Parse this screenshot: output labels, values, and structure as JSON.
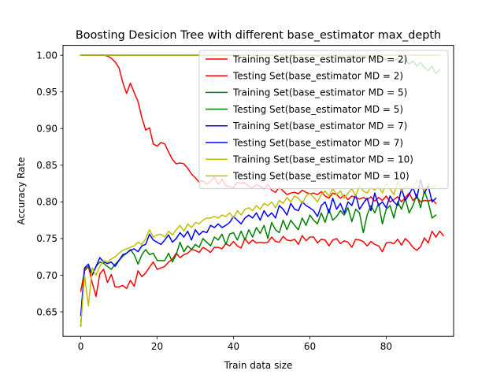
{
  "chart_data": {
    "type": "line",
    "title": "Boosting Desicion Tree with different base_estimator max_depth",
    "xlabel": "Train data size",
    "ylabel": "Accuracy Rate",
    "xlim": [
      -4.65,
      97.65
    ],
    "ylim": [
      0.6165,
      1.0135
    ],
    "xticks": [
      0,
      20,
      40,
      60,
      80
    ],
    "yticks": [
      0.65,
      0.7,
      0.75,
      0.8,
      0.85,
      0.9,
      0.95,
      1.0
    ],
    "ytick_labels": [
      "0.65",
      "0.70",
      "0.75",
      "0.80",
      "0.85",
      "0.90",
      "0.95",
      "1.00"
    ],
    "grid": false,
    "legend_position": "upper right",
    "series": [
      {
        "name": "Training Set(base_estimator MD = 2)",
        "color": "#ff0000",
        "values": [
          1.0,
          1.0,
          1.0,
          1.0,
          1.0,
          1.0,
          1.0,
          0.999,
          0.996,
          0.991,
          0.983,
          0.963,
          0.948,
          0.962,
          0.949,
          0.937,
          0.915,
          0.898,
          0.901,
          0.879,
          0.876,
          0.881,
          0.879,
          0.868,
          0.858,
          0.852,
          0.853,
          0.852,
          0.846,
          0.838,
          0.833,
          0.827,
          0.829,
          0.824,
          0.828,
          0.834,
          0.824,
          0.831,
          0.822,
          0.821,
          0.819,
          0.827,
          0.825,
          0.826,
          0.821,
          0.819,
          0.824,
          0.821,
          0.818,
          0.824,
          0.816,
          0.813,
          0.82,
          0.815,
          0.81,
          0.812,
          0.813,
          0.811,
          0.816,
          0.813,
          0.811,
          0.812,
          0.81,
          0.814,
          0.808,
          0.805,
          0.812,
          0.81,
          0.805,
          0.809,
          0.803,
          0.808,
          0.806,
          0.804,
          0.806,
          0.803,
          0.807,
          0.801,
          0.806,
          0.802,
          0.808,
          0.8,
          0.803,
          0.807,
          0.8,
          0.806,
          0.812,
          0.802,
          0.807,
          0.8,
          0.802,
          0.801,
          0.803,
          0.798
        ]
      },
      {
        "name": "Testing Set(base_estimator MD = 2)",
        "color": "#ff0000",
        "values": [
          0.678,
          0.706,
          0.712,
          0.69,
          0.671,
          0.702,
          0.708,
          0.69,
          0.701,
          0.684,
          0.684,
          0.686,
          0.682,
          0.693,
          0.685,
          0.706,
          0.698,
          0.703,
          0.711,
          0.718,
          0.708,
          0.71,
          0.712,
          0.718,
          0.722,
          0.73,
          0.724,
          0.728,
          0.73,
          0.735,
          0.734,
          0.731,
          0.738,
          0.735,
          0.731,
          0.738,
          0.738,
          0.736,
          0.743,
          0.74,
          0.746,
          0.74,
          0.737,
          0.75,
          0.743,
          0.748,
          0.744,
          0.745,
          0.744,
          0.745,
          0.752,
          0.746,
          0.745,
          0.753,
          0.748,
          0.747,
          0.749,
          0.742,
          0.754,
          0.747,
          0.752,
          0.752,
          0.744,
          0.749,
          0.748,
          0.74,
          0.748,
          0.75,
          0.743,
          0.747,
          0.745,
          0.738,
          0.749,
          0.748,
          0.746,
          0.74,
          0.746,
          0.742,
          0.74,
          0.732,
          0.744,
          0.745,
          0.743,
          0.749,
          0.741,
          0.75,
          0.745,
          0.738,
          0.734,
          0.739,
          0.751,
          0.744,
          0.76,
          0.752,
          0.76,
          0.754
        ]
      },
      {
        "name": "Training Set(base_estimator MD = 5)",
        "color": "#008000",
        "values": [
          1.0,
          1.0,
          1.0,
          1.0,
          1.0,
          1.0,
          1.0,
          1.0,
          1.0,
          1.0,
          1.0,
          1.0,
          1.0,
          1.0,
          1.0,
          1.0,
          1.0,
          1.0,
          1.0,
          1.0,
          1.0,
          1.0,
          1.0,
          1.0,
          1.0,
          1.0,
          1.0,
          1.0,
          1.0,
          1.0,
          1.0,
          1.0,
          1.0,
          1.0,
          1.0,
          1.0,
          1.0,
          1.0,
          1.0,
          1.0,
          1.0,
          1.0,
          1.0,
          1.0,
          1.0,
          1.0,
          1.0,
          1.0,
          1.0,
          1.0,
          1.0,
          1.0,
          1.0,
          1.0,
          1.0,
          1.0,
          1.0,
          1.0,
          1.0,
          1.0,
          1.0,
          1.0,
          0.999,
          1.0,
          1.0,
          0.999,
          1.0,
          0.999,
          0.998,
          1.0,
          0.999,
          0.998,
          0.997,
          0.998,
          0.999,
          0.997,
          0.996,
          0.998,
          0.995,
          0.997,
          0.994,
          0.996,
          0.993,
          0.995,
          0.99,
          0.994,
          0.988,
          0.992,
          0.985,
          0.99,
          0.983,
          0.979,
          0.985,
          0.975,
          0.98
        ]
      },
      {
        "name": "Testing Set(base_estimator MD = 5)",
        "color": "#008000",
        "values": [
          0.631,
          0.708,
          0.712,
          0.7,
          0.712,
          0.718,
          0.716,
          0.712,
          0.708,
          0.715,
          0.72,
          0.726,
          0.73,
          0.735,
          0.728,
          0.715,
          0.728,
          0.735,
          0.728,
          0.73,
          0.72,
          0.72,
          0.72,
          0.73,
          0.718,
          0.728,
          0.745,
          0.732,
          0.74,
          0.735,
          0.742,
          0.738,
          0.75,
          0.745,
          0.74,
          0.752,
          0.748,
          0.756,
          0.742,
          0.756,
          0.758,
          0.748,
          0.76,
          0.748,
          0.762,
          0.752,
          0.765,
          0.757,
          0.768,
          0.75,
          0.772,
          0.762,
          0.758,
          0.775,
          0.762,
          0.775,
          0.768,
          0.762,
          0.778,
          0.768,
          0.782,
          0.775,
          0.77,
          0.785,
          0.772,
          0.79,
          0.775,
          0.78,
          0.788,
          0.782,
          0.792,
          0.773,
          0.79,
          0.785,
          0.758,
          0.782,
          0.795,
          0.785,
          0.798,
          0.77,
          0.79,
          0.795,
          0.778,
          0.8,
          0.79,
          0.805,
          0.785,
          0.795,
          0.81,
          0.792,
          0.815,
          0.8,
          0.778,
          0.782
        ]
      },
      {
        "name": "Training Set(base_estimator MD = 7)",
        "color": "#0000ff",
        "values": [
          1.0,
          1.0,
          1.0,
          1.0,
          1.0,
          1.0,
          1.0,
          1.0,
          1.0,
          1.0,
          1.0,
          1.0,
          1.0,
          1.0,
          1.0,
          1.0,
          1.0,
          1.0,
          1.0,
          1.0,
          1.0,
          1.0,
          1.0,
          1.0,
          1.0,
          1.0,
          1.0,
          1.0,
          1.0,
          1.0,
          1.0,
          1.0,
          1.0,
          1.0,
          1.0,
          1.0,
          1.0,
          1.0,
          1.0,
          1.0,
          1.0,
          1.0,
          1.0,
          1.0,
          1.0,
          1.0,
          1.0,
          1.0,
          1.0,
          1.0,
          1.0,
          1.0,
          1.0,
          1.0,
          1.0,
          1.0,
          1.0,
          1.0,
          1.0,
          1.0,
          1.0,
          1.0,
          1.0,
          1.0,
          1.0,
          1.0,
          1.0,
          1.0,
          1.0,
          1.0,
          1.0,
          1.0,
          1.0,
          1.0,
          1.0,
          1.0,
          1.0,
          1.0,
          1.0,
          1.0,
          1.0,
          1.0,
          1.0,
          1.0,
          1.0,
          1.0,
          1.0,
          1.0,
          1.0,
          1.0,
          1.0,
          1.0,
          1.0,
          1.0,
          1.0
        ]
      },
      {
        "name": "Testing Set(base_estimator MD = 7)",
        "color": "#0000ff",
        "values": [
          0.645,
          0.71,
          0.715,
          0.7,
          0.712,
          0.724,
          0.718,
          0.716,
          0.718,
          0.712,
          0.72,
          0.728,
          0.73,
          0.734,
          0.736,
          0.732,
          0.74,
          0.742,
          0.756,
          0.748,
          0.745,
          0.742,
          0.748,
          0.755,
          0.745,
          0.75,
          0.758,
          0.752,
          0.76,
          0.748,
          0.762,
          0.755,
          0.76,
          0.758,
          0.768,
          0.765,
          0.77,
          0.765,
          0.768,
          0.772,
          0.78,
          0.775,
          0.77,
          0.778,
          0.782,
          0.778,
          0.785,
          0.775,
          0.788,
          0.78,
          0.785,
          0.778,
          0.795,
          0.79,
          0.782,
          0.798,
          0.79,
          0.788,
          0.8,
          0.795,
          0.792,
          0.788,
          0.78,
          0.795,
          0.8,
          0.785,
          0.805,
          0.79,
          0.798,
          0.785,
          0.8,
          0.795,
          0.81,
          0.79,
          0.798,
          0.805,
          0.788,
          0.812,
          0.795,
          0.8,
          0.792,
          0.808,
          0.8,
          0.795,
          0.818,
          0.802,
          0.81,
          0.82,
          0.805,
          0.83,
          0.812,
          0.822,
          0.8,
          0.805
        ]
      },
      {
        "name": "Training Set(base_estimator MD = 10)",
        "color": "#bfbf00",
        "values": [
          1.0,
          1.0,
          1.0,
          1.0,
          1.0,
          1.0,
          1.0,
          1.0,
          1.0,
          1.0,
          1.0,
          1.0,
          1.0,
          1.0,
          1.0,
          1.0,
          1.0,
          1.0,
          1.0,
          1.0,
          1.0,
          1.0,
          1.0,
          1.0,
          1.0,
          1.0,
          1.0,
          1.0,
          1.0,
          1.0,
          1.0,
          1.0,
          1.0,
          1.0,
          1.0,
          1.0,
          1.0,
          1.0,
          1.0,
          1.0,
          1.0,
          1.0,
          1.0,
          1.0,
          1.0,
          1.0,
          1.0,
          1.0,
          1.0,
          1.0,
          1.0,
          1.0,
          1.0,
          1.0,
          1.0,
          1.0,
          1.0,
          1.0,
          1.0,
          1.0,
          1.0,
          1.0,
          1.0,
          1.0,
          1.0,
          1.0,
          1.0,
          1.0,
          1.0,
          1.0,
          1.0,
          1.0,
          1.0,
          1.0,
          1.0,
          1.0,
          1.0,
          1.0,
          1.0,
          1.0,
          1.0,
          1.0,
          1.0,
          1.0,
          1.0,
          1.0,
          1.0,
          1.0,
          1.0,
          1.0,
          1.0,
          1.0,
          1.0,
          1.0,
          1.0
        ]
      },
      {
        "name": "Testing Set(base_estimator MD = 10)",
        "color": "#bfbf00",
        "values": [
          0.632,
          0.7,
          0.658,
          0.71,
          0.7,
          0.712,
          0.72,
          0.718,
          0.722,
          0.725,
          0.73,
          0.734,
          0.736,
          0.738,
          0.74,
          0.745,
          0.742,
          0.75,
          0.762,
          0.752,
          0.755,
          0.756,
          0.752,
          0.76,
          0.755,
          0.762,
          0.768,
          0.76,
          0.77,
          0.765,
          0.772,
          0.77,
          0.775,
          0.778,
          0.778,
          0.78,
          0.778,
          0.782,
          0.78,
          0.785,
          0.778,
          0.788,
          0.782,
          0.79,
          0.792,
          0.788,
          0.795,
          0.79,
          0.798,
          0.795,
          0.8,
          0.792,
          0.802,
          0.798,
          0.806,
          0.8,
          0.808,
          0.805,
          0.798,
          0.808,
          0.812,
          0.806,
          0.8,
          0.81,
          0.815,
          0.808,
          0.818,
          0.81,
          0.815,
          0.805,
          0.812,
          0.818,
          0.808,
          0.822,
          0.815,
          0.812,
          0.82,
          0.816,
          0.822,
          0.812,
          0.825,
          0.818,
          0.81,
          0.828,
          0.815,
          0.822,
          0.82,
          0.818,
          0.83,
          0.822,
          0.815,
          0.825,
          0.82,
          0.822
        ]
      }
    ]
  }
}
